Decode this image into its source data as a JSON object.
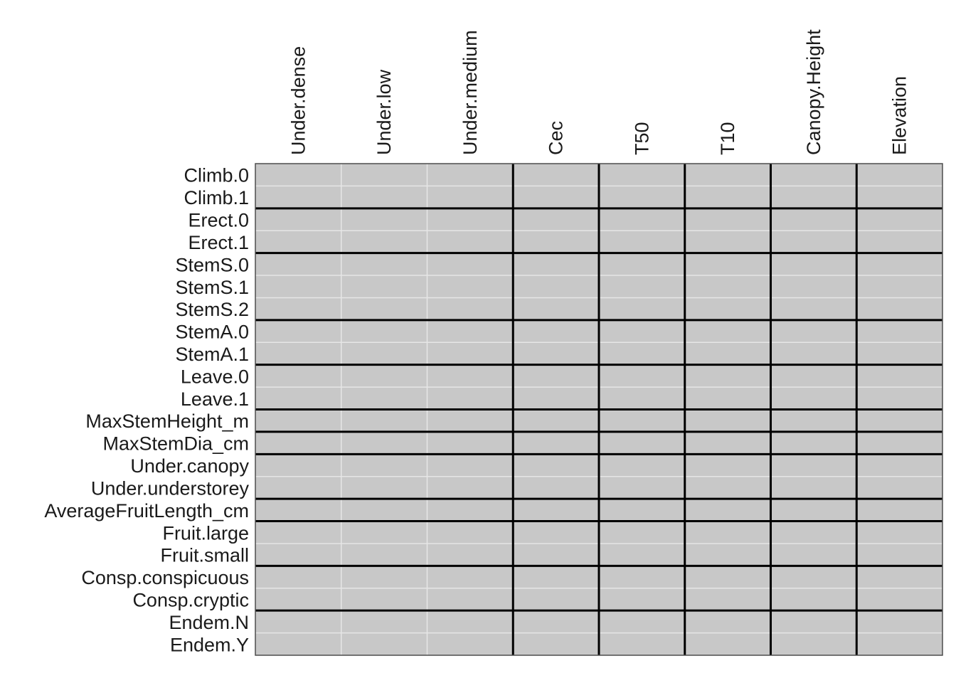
{
  "chart_data": {
    "type": "heatmap",
    "title": "",
    "xlabel": "",
    "ylabel": "",
    "columns": [
      "Under.dense",
      "Under.low",
      "Under.medium",
      "Cec",
      "T50",
      "T10",
      "Canopy.Height",
      "Elevation"
    ],
    "rows": [
      "Climb.0",
      "Climb.1",
      "Erect.0",
      "Erect.1",
      "StemS.0",
      "StemS.1",
      "StemS.2",
      "StemA.0",
      "StemA.1",
      "Leave.0",
      "Leave.1",
      "MaxStemHeight_m",
      "MaxStemDia_cm",
      "Under.canopy",
      "Under.understorey",
      "AverageFruitLength_cm",
      "Fruit.large",
      "Fruit.small",
      "Consp.conspicuous",
      "Consp.cryptic",
      "Endem.N",
      "Endem.Y"
    ],
    "column_groups": [
      3,
      1,
      1,
      1,
      1,
      1
    ],
    "row_groups": [
      2,
      2,
      3,
      2,
      2,
      1,
      1,
      2,
      1,
      2,
      2,
      2
    ],
    "cell_fill_color": "#c8c8c8",
    "minor_line_color": "#e6e6e6",
    "group_line_color": "#000000",
    "all_cells_uniform": true
  }
}
